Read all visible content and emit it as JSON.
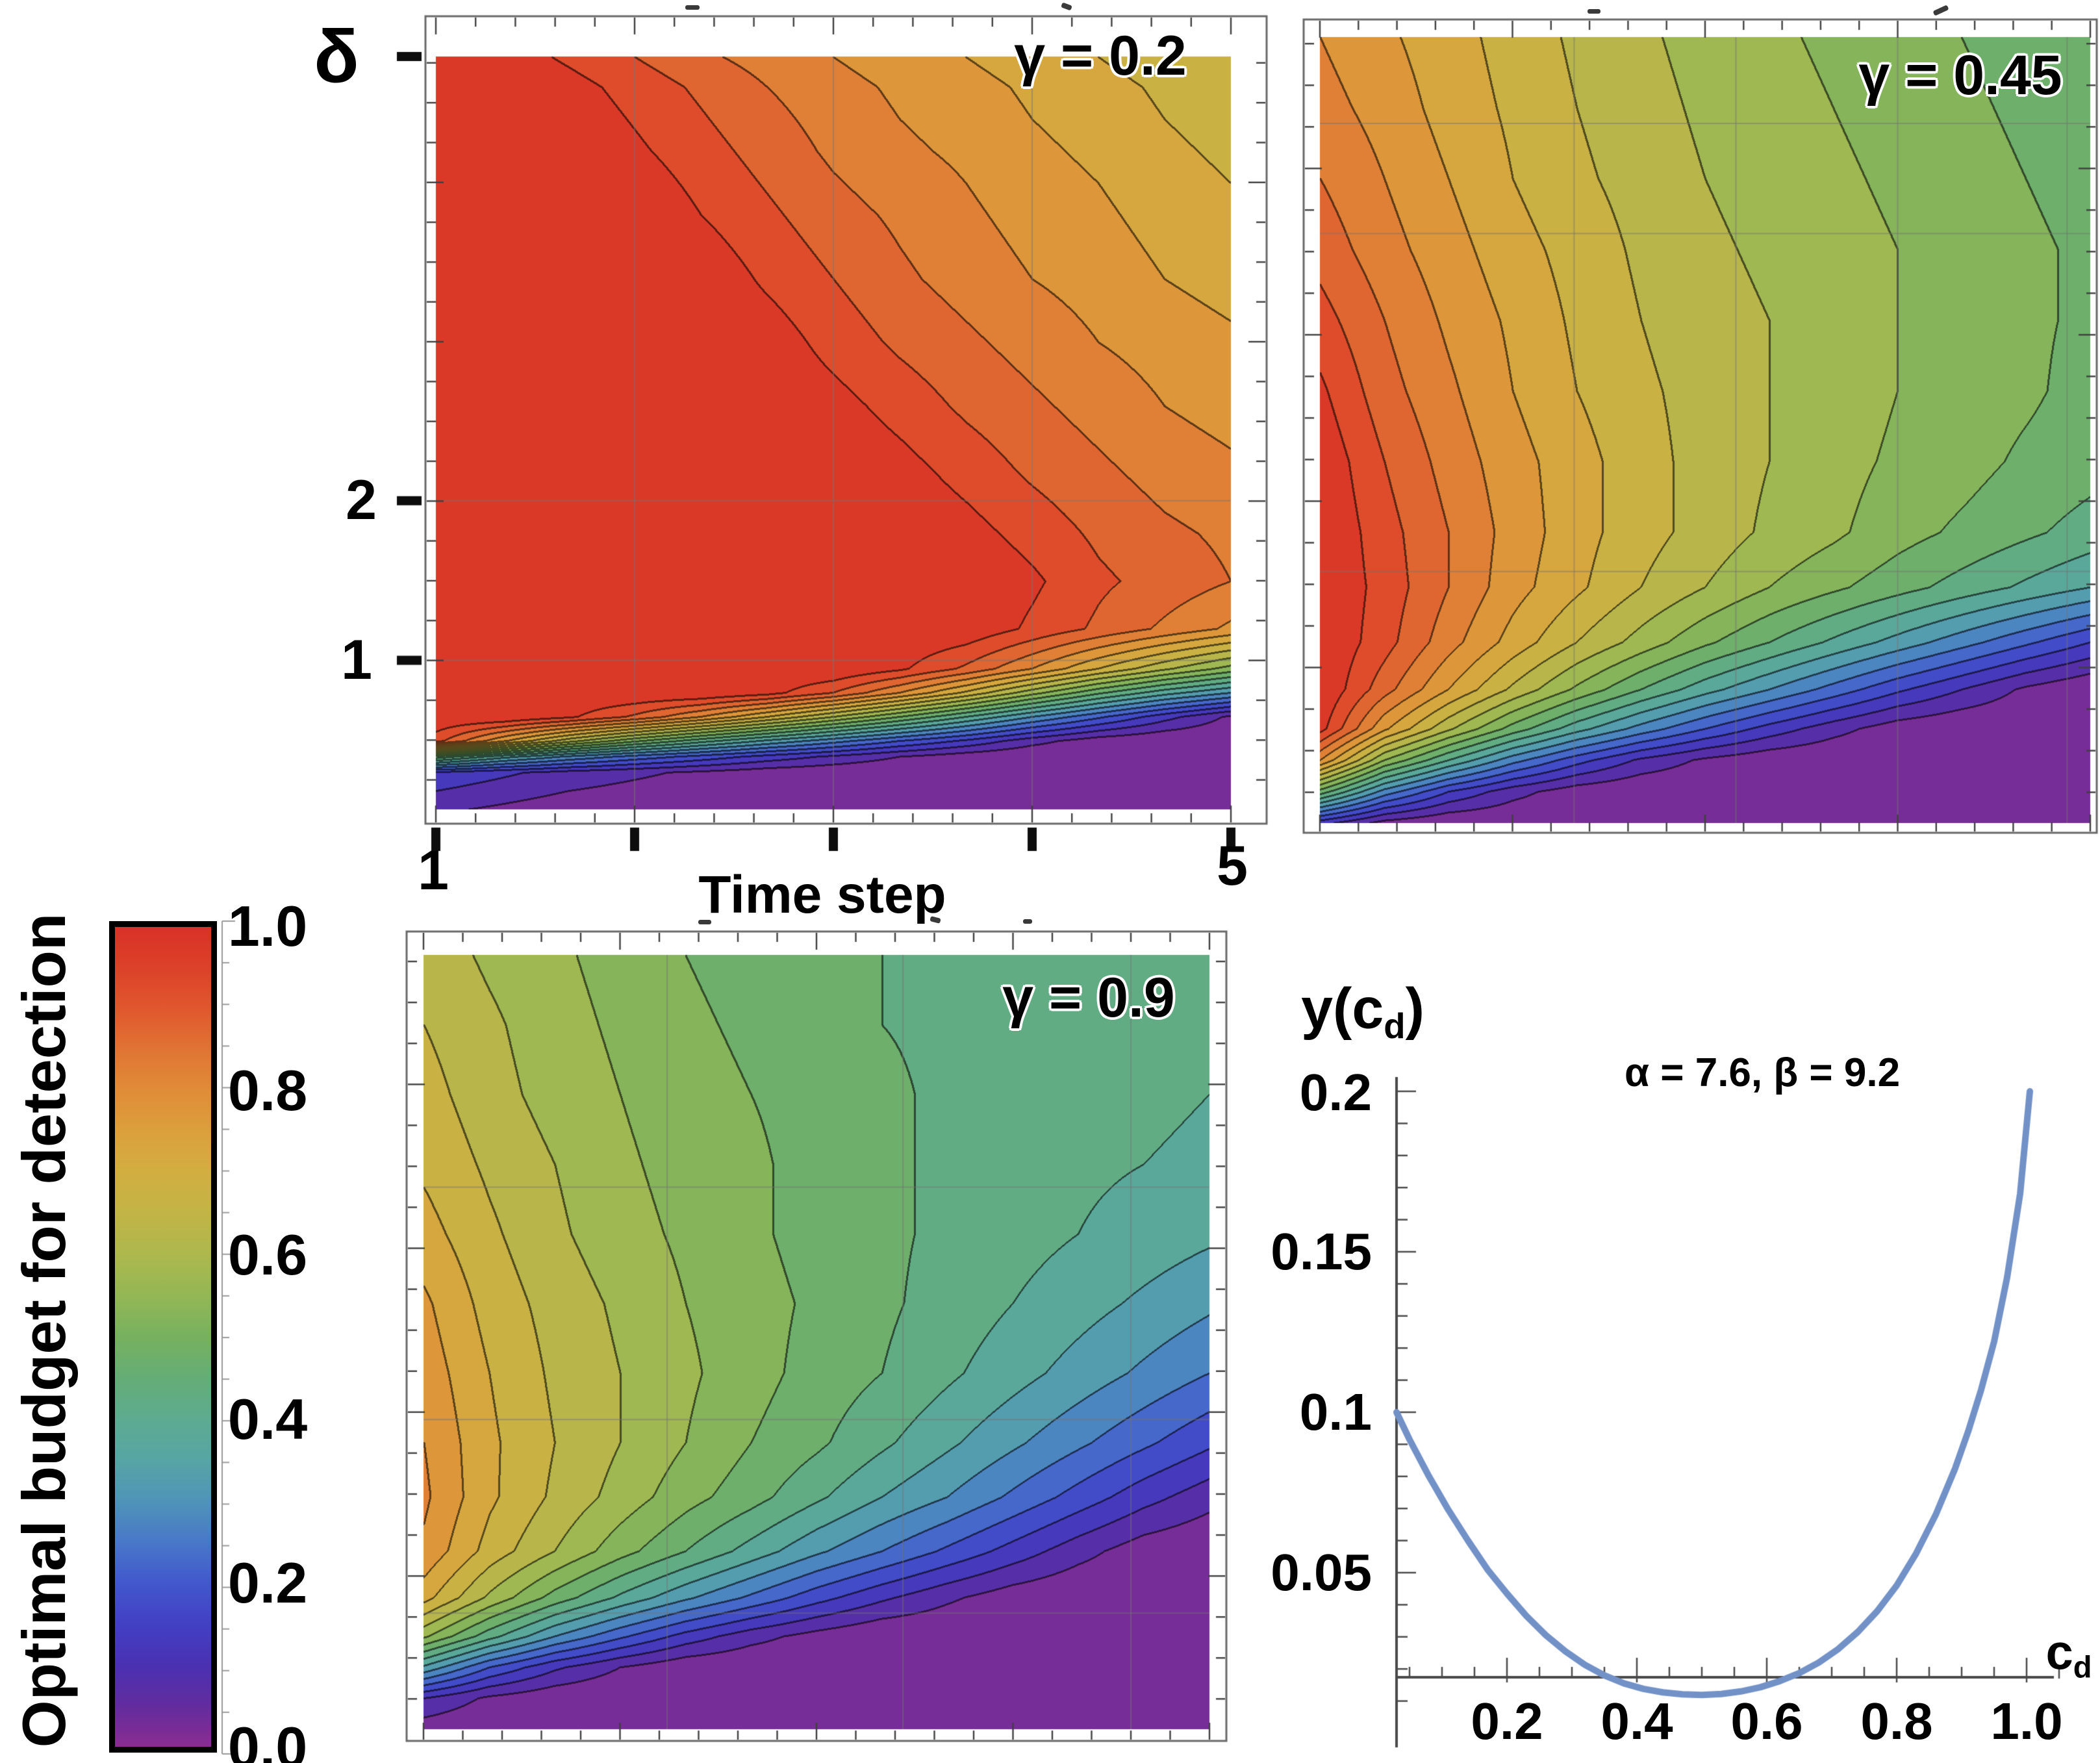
{
  "figure": {
    "type": "scientific-multi-panel",
    "panels": 4
  },
  "colorbar": {
    "title": "Optimal budget for detection",
    "tick_labels": [
      "1.0",
      "0.8",
      "0.6",
      "0.4",
      "0.2",
      "0.0"
    ],
    "range": [
      0.0,
      1.0
    ],
    "stops": [
      {
        "v": 0.0,
        "color": "#8a2d90"
      },
      {
        "v": 0.05,
        "color": "#622c9e"
      },
      {
        "v": 0.1,
        "color": "#4a31b2"
      },
      {
        "v": 0.15,
        "color": "#4240c4"
      },
      {
        "v": 0.2,
        "color": "#4258cc"
      },
      {
        "v": 0.25,
        "color": "#4878c8"
      },
      {
        "v": 0.3,
        "color": "#4f94b8"
      },
      {
        "v": 0.35,
        "color": "#57a5a4"
      },
      {
        "v": 0.4,
        "color": "#5dab90"
      },
      {
        "v": 0.45,
        "color": "#65ad76"
      },
      {
        "v": 0.5,
        "color": "#77b15f"
      },
      {
        "v": 0.55,
        "color": "#93b755"
      },
      {
        "v": 0.6,
        "color": "#adb84d"
      },
      {
        "v": 0.65,
        "color": "#c2b446"
      },
      {
        "v": 0.7,
        "color": "#d2ae41"
      },
      {
        "v": 0.75,
        "color": "#dba03c"
      },
      {
        "v": 0.8,
        "color": "#e08c38"
      },
      {
        "v": 0.85,
        "color": "#e07434"
      },
      {
        "v": 0.9,
        "color": "#e0572e"
      },
      {
        "v": 0.95,
        "color": "#dc4129"
      },
      {
        "v": 1.0,
        "color": "#d93127"
      }
    ]
  },
  "chart_data": [
    {
      "type": "heatmap",
      "subtype": "filled-contour",
      "title": "γ = 0.2",
      "xlabel": "Time step",
      "ylabel": "δ",
      "x_range": [
        1,
        5
      ],
      "y_range": [
        0.065,
        4.79
      ],
      "levels": 20,
      "value_range": [
        0,
        1
      ],
      "x_tick_labels": [
        "1",
        "5"
      ],
      "y_tick_labels": [
        "2",
        "1"
      ],
      "legend": "shared colorbar: Optimal budget for detection",
      "row_fracs": [
        0,
        0.04,
        0.125,
        0.21,
        0.295,
        0.379,
        0.464,
        0.549,
        0.633,
        0.697,
        0.76,
        0.813,
        0.845,
        0.877,
        0.909,
        0.93,
        0.951,
        1
      ],
      "grid": [
        [
          1.0,
          0.98,
          0.94,
          0.9,
          0.86,
          0.83,
          0.8,
          0.77,
          0.75,
          0.72,
          0.7,
          0.67,
          0.65
        ],
        [
          1,
          1,
          0.97,
          0.93,
          0.89,
          0.85,
          0.82,
          0.79,
          0.77,
          0.74,
          0.72,
          0.69,
          0.67
        ],
        [
          1,
          1,
          1,
          0.96,
          0.92,
          0.88,
          0.84,
          0.81,
          0.79,
          0.76,
          0.74,
          0.71,
          0.69
        ],
        [
          1,
          1,
          1,
          1,
          0.95,
          0.91,
          0.87,
          0.84,
          0.81,
          0.78,
          0.76,
          0.73,
          0.71
        ],
        [
          1,
          1,
          1,
          1,
          0.99,
          0.94,
          0.9,
          0.86,
          0.83,
          0.8,
          0.78,
          0.75,
          0.73
        ],
        [
          1,
          1,
          1,
          1,
          1,
          0.98,
          0.93,
          0.89,
          0.86,
          0.83,
          0.8,
          0.78,
          0.76
        ],
        [
          1,
          1,
          1,
          1,
          1,
          1,
          0.97,
          0.93,
          0.89,
          0.86,
          0.83,
          0.8,
          0.78
        ],
        [
          1,
          1,
          1,
          1,
          1,
          1,
          1,
          0.97,
          0.93,
          0.89,
          0.86,
          0.83,
          0.81
        ],
        [
          1,
          1,
          1,
          1,
          1,
          1,
          1,
          1,
          0.97,
          0.93,
          0.89,
          0.86,
          0.84
        ],
        [
          1,
          1,
          1,
          1,
          1,
          1,
          1,
          1,
          1,
          0.96,
          0.91,
          0.88,
          0.85
        ],
        [
          1,
          1,
          1,
          1,
          1,
          1,
          1,
          1,
          0.99,
          0.94,
          0.89,
          0.84,
          0.79
        ],
        [
          1,
          1,
          1,
          1,
          1,
          1,
          1,
          0.96,
          0.89,
          0.8,
          0.7,
          0.61,
          0.53
        ],
        [
          1,
          1,
          1,
          1,
          1,
          0.97,
          0.9,
          0.8,
          0.69,
          0.57,
          0.46,
          0.37,
          0.3
        ],
        [
          1,
          1,
          0.96,
          0.89,
          0.8,
          0.7,
          0.6,
          0.5,
          0.4,
          0.3,
          0.21,
          0.12,
          0.04
        ],
        [
          0.92,
          0.76,
          0.62,
          0.51,
          0.42,
          0.34,
          0.27,
          0.2,
          0.14,
          0.07,
          0.02,
          0,
          0
        ],
        [
          0.48,
          0.37,
          0.29,
          0.23,
          0.18,
          0.13,
          0.09,
          0.05,
          0.02,
          0,
          0,
          0,
          0
        ],
        [
          0.14,
          0.11,
          0.08,
          0.06,
          0.04,
          0.02,
          0.01,
          0,
          0,
          0,
          0,
          0,
          0
        ],
        [
          0.06,
          0.04,
          0.02,
          0.01,
          0,
          0,
          0,
          0,
          0,
          0,
          0,
          0,
          0
        ]
      ]
    },
    {
      "type": "heatmap",
      "subtype": "filled-contour",
      "title": "γ = 0.45",
      "xlabel": "",
      "ylabel": "",
      "x_range": [
        1,
        5
      ],
      "y_range": [
        0.065,
        4.79
      ],
      "levels": 20,
      "value_range": [
        0,
        1
      ],
      "x_tick_labels": [],
      "y_tick_labels": [],
      "legend": "shared colorbar: Optimal budget for detection",
      "row_fracs": [
        0,
        0.09,
        0.18,
        0.27,
        0.36,
        0.45,
        0.54,
        0.63,
        0.7,
        0.77,
        0.83,
        0.88,
        0.92,
        0.96,
        1
      ],
      "grid": [
        [
          0.8,
          0.76,
          0.72,
          0.68,
          0.64,
          0.61,
          0.58,
          0.56,
          0.54,
          0.52,
          0.5,
          0.48,
          0.47
        ],
        [
          0.82,
          0.78,
          0.73,
          0.69,
          0.65,
          0.62,
          0.59,
          0.57,
          0.55,
          0.53,
          0.51,
          0.49,
          0.48
        ],
        [
          0.85,
          0.8,
          0.75,
          0.7,
          0.66,
          0.63,
          0.6,
          0.58,
          0.56,
          0.54,
          0.52,
          0.5,
          0.48
        ],
        [
          0.88,
          0.82,
          0.77,
          0.72,
          0.68,
          0.64,
          0.61,
          0.59,
          0.57,
          0.55,
          0.53,
          0.51,
          0.49
        ],
        [
          0.92,
          0.85,
          0.79,
          0.74,
          0.69,
          0.65,
          0.62,
          0.6,
          0.57,
          0.55,
          0.53,
          0.51,
          0.49
        ],
        [
          0.96,
          0.87,
          0.81,
          0.75,
          0.7,
          0.66,
          0.63,
          0.6,
          0.58,
          0.55,
          0.53,
          0.51,
          0.48
        ],
        [
          0.99,
          0.9,
          0.83,
          0.77,
          0.72,
          0.67,
          0.63,
          0.6,
          0.57,
          0.54,
          0.52,
          0.49,
          0.47
        ],
        [
          1.0,
          0.92,
          0.85,
          0.78,
          0.72,
          0.67,
          0.63,
          0.59,
          0.56,
          0.52,
          0.49,
          0.46,
          0.43
        ],
        [
          1.0,
          0.93,
          0.85,
          0.77,
          0.71,
          0.65,
          0.6,
          0.55,
          0.51,
          0.47,
          0.43,
          0.39,
          0.35
        ],
        [
          1.0,
          0.92,
          0.82,
          0.73,
          0.65,
          0.58,
          0.51,
          0.45,
          0.39,
          0.33,
          0.27,
          0.21,
          0.15
        ],
        [
          1.0,
          0.87,
          0.75,
          0.64,
          0.54,
          0.45,
          0.37,
          0.3,
          0.23,
          0.16,
          0.1,
          0.04,
          0.0
        ],
        [
          0.97,
          0.76,
          0.61,
          0.48,
          0.37,
          0.28,
          0.2,
          0.13,
          0.07,
          0.02,
          0,
          0,
          0
        ],
        [
          0.8,
          0.55,
          0.4,
          0.27,
          0.17,
          0.09,
          0.04,
          0.01,
          0,
          0,
          0,
          0,
          0
        ],
        [
          0.48,
          0.28,
          0.15,
          0.07,
          0.02,
          0,
          0,
          0,
          0,
          0,
          0,
          0,
          0
        ],
        [
          0.12,
          0.03,
          0,
          0,
          0,
          0,
          0,
          0,
          0,
          0,
          0,
          0,
          0
        ]
      ]
    },
    {
      "type": "heatmap",
      "subtype": "filled-contour",
      "title": "γ = 0.9",
      "xlabel": "",
      "ylabel": "",
      "x_range": [
        1,
        5
      ],
      "y_range": [
        0.065,
        4.79
      ],
      "levels": 20,
      "value_range": [
        0,
        1
      ],
      "x_tick_labels": [],
      "y_tick_labels": [],
      "legend": "shared colorbar: Optimal budget for detection",
      "row_fracs": [
        0,
        0.09,
        0.18,
        0.27,
        0.36,
        0.45,
        0.54,
        0.63,
        0.7,
        0.77,
        0.83,
        0.88,
        0.92,
        0.96,
        1
      ],
      "grid": [
        [
          0.63,
          0.59,
          0.56,
          0.53,
          0.5,
          0.48,
          0.46,
          0.45,
          0.44,
          0.43,
          0.42,
          0.41,
          0.41
        ],
        [
          0.65,
          0.61,
          0.57,
          0.54,
          0.51,
          0.49,
          0.47,
          0.45,
          0.44,
          0.43,
          0.42,
          0.41,
          0.41
        ],
        [
          0.67,
          0.62,
          0.58,
          0.55,
          0.52,
          0.5,
          0.48,
          0.46,
          0.44,
          0.43,
          0.42,
          0.41,
          0.4
        ],
        [
          0.69,
          0.64,
          0.6,
          0.56,
          0.53,
          0.51,
          0.48,
          0.46,
          0.44,
          0.43,
          0.41,
          0.4,
          0.39
        ],
        [
          0.72,
          0.66,
          0.61,
          0.57,
          0.54,
          0.51,
          0.48,
          0.46,
          0.44,
          0.42,
          0.4,
          0.38,
          0.36
        ],
        [
          0.76,
          0.68,
          0.63,
          0.59,
          0.55,
          0.52,
          0.49,
          0.46,
          0.43,
          0.4,
          0.37,
          0.34,
          0.31
        ],
        [
          0.78,
          0.7,
          0.64,
          0.6,
          0.56,
          0.52,
          0.48,
          0.45,
          0.41,
          0.37,
          0.33,
          0.29,
          0.25
        ],
        [
          0.8,
          0.71,
          0.65,
          0.6,
          0.55,
          0.5,
          0.46,
          0.41,
          0.36,
          0.31,
          0.26,
          0.21,
          0.16
        ],
        [
          0.81,
          0.71,
          0.64,
          0.58,
          0.52,
          0.47,
          0.41,
          0.35,
          0.3,
          0.24,
          0.18,
          0.12,
          0.07
        ],
        [
          0.79,
          0.68,
          0.6,
          0.52,
          0.45,
          0.38,
          0.31,
          0.25,
          0.19,
          0.13,
          0.07,
          0.02,
          0
        ],
        [
          0.72,
          0.59,
          0.48,
          0.39,
          0.31,
          0.24,
          0.17,
          0.11,
          0.06,
          0.02,
          0,
          0,
          0
        ],
        [
          0.56,
          0.42,
          0.3,
          0.21,
          0.13,
          0.07,
          0.03,
          0,
          0,
          0,
          0,
          0,
          0
        ],
        [
          0.34,
          0.2,
          0.11,
          0.05,
          0.01,
          0,
          0,
          0,
          0,
          0,
          0,
          0,
          0
        ],
        [
          0.1,
          0.04,
          0.01,
          0,
          0,
          0,
          0,
          0,
          0,
          0,
          0,
          0,
          0
        ],
        [
          0.02,
          0,
          0,
          0,
          0,
          0,
          0,
          0,
          0,
          0,
          0,
          0,
          0
        ]
      ]
    },
    {
      "type": "line",
      "title": "α = 7.6, β = 9.2",
      "alpha": 7.6,
      "beta": 9.2,
      "ylabel_pre": "y(c",
      "ylabel_sub": "d",
      "ylabel_post": ")",
      "xlabel_pre": "c",
      "xlabel_sub": "d",
      "x_tick_labels": [
        "0.2",
        "0.4",
        "0.6",
        "0.8",
        "1.0"
      ],
      "x_ticks": [
        0.2,
        0.4,
        0.6,
        0.8,
        1.0
      ],
      "y_tick_labels": [
        "0.2",
        "0.15",
        "0.1",
        "0.05"
      ],
      "y_ticks": [
        0.2,
        0.15,
        0.1,
        0.05
      ],
      "x_range": [
        0.03,
        1.07
      ],
      "y_range": [
        0.0,
        0.21
      ],
      "color": "#7191c7",
      "grid": false,
      "legend_position": "none",
      "points": [
        [
          0.03,
          0.1
        ],
        [
          0.05,
          0.0915
        ],
        [
          0.08,
          0.08
        ],
        [
          0.11,
          0.0695
        ],
        [
          0.14,
          0.06
        ],
        [
          0.17,
          0.051
        ],
        [
          0.2,
          0.0435
        ],
        [
          0.23,
          0.0365
        ],
        [
          0.26,
          0.0305
        ],
        [
          0.29,
          0.0255
        ],
        [
          0.32,
          0.0213
        ],
        [
          0.35,
          0.018
        ],
        [
          0.38,
          0.0155
        ],
        [
          0.41,
          0.0138
        ],
        [
          0.44,
          0.0127
        ],
        [
          0.47,
          0.0121
        ],
        [
          0.5,
          0.0119
        ],
        [
          0.53,
          0.0122
        ],
        [
          0.56,
          0.013
        ],
        [
          0.59,
          0.0143
        ],
        [
          0.62,
          0.0162
        ],
        [
          0.65,
          0.0187
        ],
        [
          0.68,
          0.022
        ],
        [
          0.71,
          0.0262
        ],
        [
          0.74,
          0.0315
        ],
        [
          0.77,
          0.038
        ],
        [
          0.8,
          0.046
        ],
        [
          0.83,
          0.056
        ],
        [
          0.86,
          0.068
        ],
        [
          0.89,
          0.0825
        ],
        [
          0.91,
          0.094
        ],
        [
          0.93,
          0.107
        ],
        [
          0.95,
          0.122
        ],
        [
          0.97,
          0.142
        ],
        [
          0.99,
          0.168
        ],
        [
          1.005,
          0.2
        ]
      ]
    }
  ]
}
